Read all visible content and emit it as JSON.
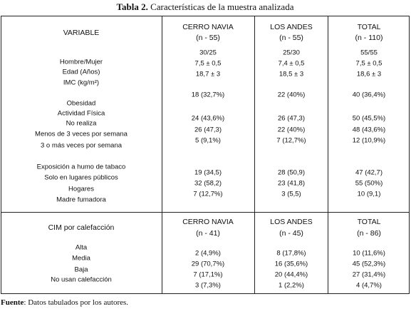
{
  "title": {
    "label": "Tabla 2.",
    "text": "Características de la muestra analizada"
  },
  "table": {
    "sections": [
      {
        "variable": "VARIABLE",
        "columns": [
          {
            "name": "CERRO NAVIA",
            "n": "(n - 55)"
          },
          {
            "name": "LOS ANDES",
            "n": "(n - 55)"
          },
          {
            "name": "TOTAL",
            "n": "(n - 110)"
          }
        ],
        "labels": [
          "Hombre/Mujer",
          "Edad (Años)",
          "IMC (kg/m²)",
          "Obesidad",
          "Actividad Física",
          "No realiza",
          "Menos de 3 veces por semana",
          "3 o más veces por semana",
          "Exposición a humo de tabaco",
          "Solo en lugares públicos",
          "Hogares",
          "Madre fumadora"
        ],
        "rows": [
          [
            "30/25",
            "25/30",
            "55/55"
          ],
          [
            "7,5 ± 0,5",
            "7,4 ± 0,5",
            "7,5 ± 0,5"
          ],
          [
            "18,7 ± 3",
            "18,5 ± 3",
            "18,6 ± 3"
          ],
          [
            "18 (32,7%)",
            "22 (40%)",
            "40 (36,4%)"
          ],
          [
            "24 (43,6%)",
            "26 (47,3)",
            "50 (45,5%)"
          ],
          [
            "26 (47,3)",
            "22 (40%)",
            "48 (43,6%)"
          ],
          [
            "5 (9,1%)",
            "7 (12,7%)",
            "12 (10,9%)"
          ],
          [
            "19 (34,5)",
            "28 (50,9)",
            "47 (42,7)"
          ],
          [
            "32 (58,2)",
            "23 (41,8)",
            "55 (50%)"
          ],
          [
            "7 (12,7%)",
            "3 (5,5)",
            "10 (9,1)"
          ]
        ]
      },
      {
        "variable": "CIM por calefacción",
        "columns": [
          {
            "name": "CERRO NAVIA",
            "n": "(n - 41)"
          },
          {
            "name": "LOS ANDES",
            "n": "(n - 45)"
          },
          {
            "name": "TOTAL",
            "n": "(n - 86)"
          }
        ],
        "labels": [
          "Alta",
          "Media",
          "Baja",
          "No usan calefacción"
        ],
        "rows": [
          [
            "2 (4,9%)",
            "8 (17,8%)",
            "10 (11,6%)"
          ],
          [
            "29 (70,7%)",
            "16 (35,6%)",
            "45 (52,3%)"
          ],
          [
            "7 (17,1%)",
            "20 (44,4%)",
            "27 (31,4%)"
          ],
          [
            "3 (7,3%)",
            "1 (2,2%)",
            "4 (4,7%)"
          ]
        ]
      }
    ]
  },
  "footer": {
    "label": "Fuente",
    "text": ": Datos tabulados por los autores."
  }
}
